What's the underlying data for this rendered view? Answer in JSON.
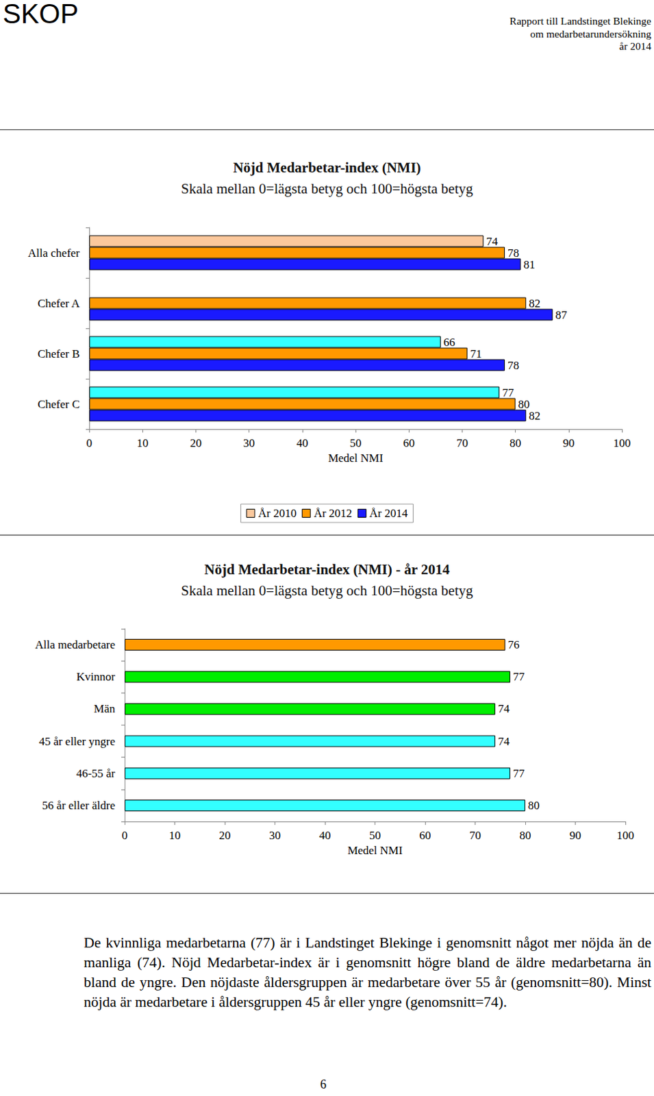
{
  "header": {
    "logo": "SKOP",
    "report_lines": [
      "Rapport till Landstinget Blekinge",
      "om medarbetarundersökning",
      "år 2014"
    ]
  },
  "chart_data": [
    {
      "type": "bar",
      "orientation": "horizontal",
      "title": "Nöjd Medarbetar-index (NMI)",
      "subtitle": "Skala mellan 0=lägsta betyg och 100=högsta betyg",
      "xlabel": "Medel NMI",
      "categories": [
        "Alla chefer",
        "Chefer A",
        "Chefer B",
        "Chefer C"
      ],
      "series": [
        {
          "name": "År 2010",
          "color": "#fbc89c",
          "colors": [
            "#fbc89c",
            "#fbc89c",
            "#33ffff",
            "#33ffff"
          ],
          "values": [
            74,
            null,
            66,
            77
          ]
        },
        {
          "name": "År 2012",
          "color": "#ff9900",
          "values": [
            78,
            82,
            71,
            80
          ]
        },
        {
          "name": "År 2014",
          "color": "#1a1aff",
          "values": [
            81,
            87,
            78,
            82
          ]
        }
      ],
      "xlim": [
        0,
        100
      ],
      "xticks": [
        0,
        10,
        20,
        30,
        40,
        50,
        60,
        70,
        80,
        90,
        100
      ],
      "grid": false,
      "legend": "bottom",
      "data_labels": true
    },
    {
      "type": "bar",
      "orientation": "horizontal",
      "title": "Nöjd Medarbetar-index (NMI) - år 2014",
      "subtitle": "Skala mellan 0=lägsta betyg och 100=högsta betyg",
      "xlabel": "Medel NMI",
      "categories": [
        "Alla medarbetare",
        "Kvinnor",
        "Män",
        "45 år eller yngre",
        "46-55 år",
        "56 år eller äldre"
      ],
      "values": [
        76,
        77,
        74,
        74,
        77,
        80
      ],
      "colors": [
        "#ff9900",
        "#00ee00",
        "#00ee00",
        "#33ffff",
        "#33ffff",
        "#33ffff"
      ],
      "xlim": [
        0,
        100
      ],
      "xticks": [
        0,
        10,
        20,
        30,
        40,
        50,
        60,
        70,
        80,
        90,
        100
      ],
      "grid": false,
      "data_labels": true
    }
  ],
  "paragraph": "De kvinnliga medarbetarna (77) är i Landstinget Blekinge i genomsnitt något mer nöjda än de manliga (74). Nöjd Medarbetar-index är i genomsnitt högre bland de äldre medarbetarna än bland de yngre. Den nöjdaste åldersgruppen är medarbetare över 55 år (genomsnitt=80). Minst nöjda är medarbetare i åldersgruppen 45 år eller yngre (genomsnitt=74).",
  "page_number": 6
}
